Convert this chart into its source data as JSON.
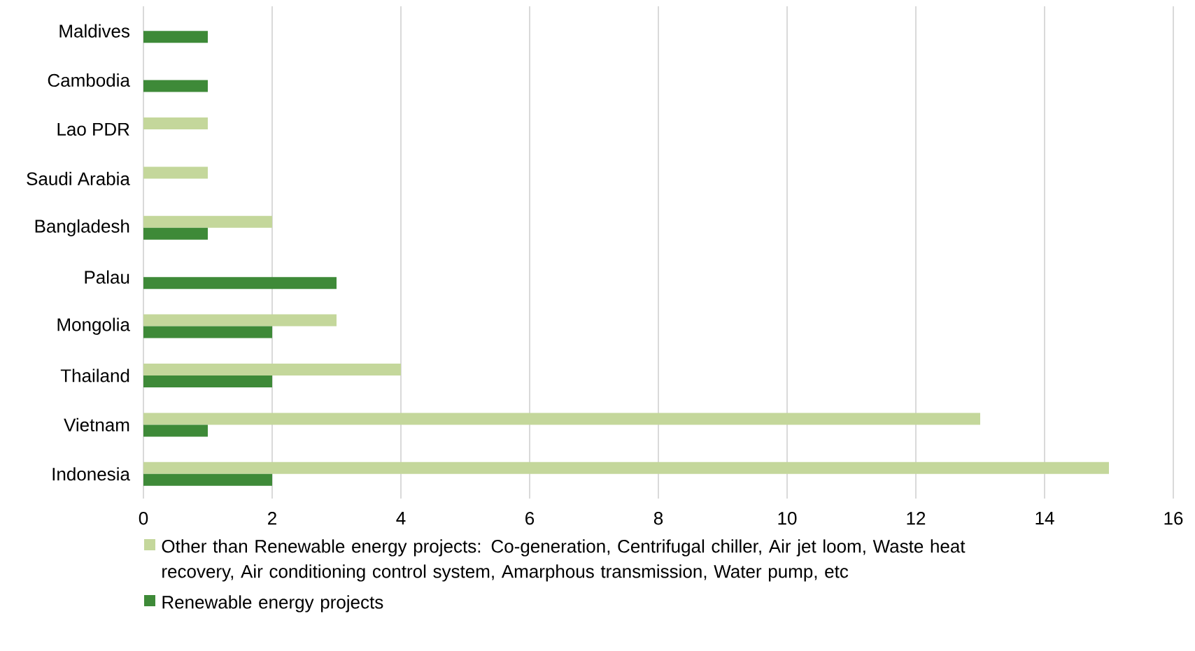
{
  "chart_data": {
    "type": "bar",
    "orientation": "horizontal",
    "categories": [
      "Maldives",
      "Cambodia",
      "Lao PDR",
      "Saudi Arabia",
      "Bangladesh",
      "Palau",
      "Mongolia",
      "Thailand",
      "Vietnam",
      "Indonesia"
    ],
    "series": [
      {
        "name": "Other than Renewable energy projects: Co-generation, Centrifugal chiller, Air jet loom, Waste heat recovery, Air conditioning control system, Amarphous transmission, Water pump, etc",
        "color": "#c4d79b",
        "values": [
          null,
          null,
          1,
          1,
          2,
          null,
          3,
          4,
          13,
          15
        ]
      },
      {
        "name": "Renewable energy projects",
        "color": "#3e8a38",
        "values": [
          1,
          1,
          null,
          null,
          1,
          3,
          2,
          2,
          1,
          2
        ]
      }
    ],
    "xlim": [
      0,
      16
    ],
    "xticks": [
      0,
      2,
      4,
      6,
      8,
      10,
      12,
      14,
      16
    ],
    "grid": "x",
    "legend": "bottom"
  }
}
